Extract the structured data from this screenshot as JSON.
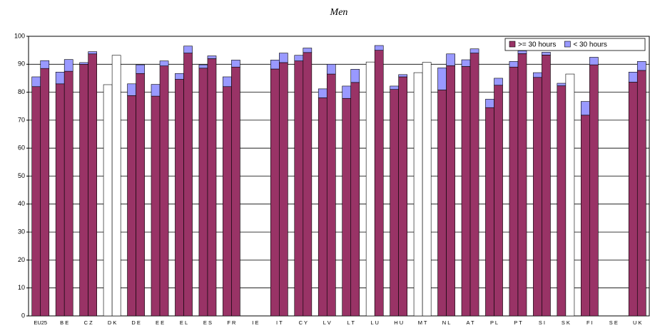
{
  "chart_data": {
    "type": "bar",
    "stacked": true,
    "title": "Men",
    "categories": [
      "EU25",
      "B E",
      "C Z",
      "D K",
      "D E",
      "E E",
      "E L",
      "E S",
      "F R",
      "I E",
      "I T",
      "C Y",
      "L V",
      "L T",
      "L U",
      "H U",
      "M T",
      "N L",
      "A T",
      "P L",
      "P T",
      "S I",
      "S K",
      "F I",
      "S E",
      "U K"
    ],
    "series": [
      {
        "name": ">= 30 hours",
        "color": "#993366",
        "values": [
          [
            82,
            88.5
          ],
          [
            83,
            87.5
          ],
          [
            90,
            93.7
          ],
          [
            null,
            null
          ],
          [
            78.8,
            86.7
          ],
          [
            78.6,
            89.4
          ],
          [
            84.6,
            94
          ],
          [
            88.6,
            92
          ],
          [
            82,
            89
          ],
          [
            null,
            null
          ],
          [
            88.3,
            90.6
          ],
          [
            91.2,
            94.2
          ],
          [
            78,
            86.5
          ],
          [
            77.8,
            83.5
          ],
          [
            null,
            95
          ],
          [
            81,
            85.5
          ],
          [
            null,
            null
          ],
          [
            80.8,
            89.5
          ],
          [
            89.2,
            94
          ],
          [
            74.5,
            82.5
          ],
          [
            89,
            93.8
          ],
          [
            85.3,
            93.3
          ],
          [
            82.3,
            null
          ],
          [
            71.8,
            89.8
          ],
          [
            null,
            null
          ],
          [
            83.6,
            87.8
          ]
        ]
      },
      {
        "name": "< 30 hours",
        "color": "#9999ff",
        "values": [
          [
            3.5,
            2.8
          ],
          [
            4.2,
            4.2
          ],
          [
            0.6,
            0.8
          ],
          [
            null,
            null
          ],
          [
            4.2,
            3.1
          ],
          [
            4.2,
            1.8
          ],
          [
            2.1,
            2.5
          ],
          [
            1.2,
            1
          ],
          [
            3.5,
            2.5
          ],
          [
            null,
            null
          ],
          [
            3.2,
            3.4
          ],
          [
            2,
            1.6
          ],
          [
            3.2,
            3.5
          ],
          [
            4.4,
            4.7
          ],
          [
            null,
            1.7
          ],
          [
            1.2,
            0.8
          ],
          [
            null,
            null
          ],
          [
            7.9,
            4.2
          ],
          [
            2.4,
            1.5
          ],
          [
            3,
            2.5
          ],
          [
            2,
            1
          ],
          [
            1.7,
            1
          ],
          [
            0.9,
            null
          ],
          [
            4.9,
            2.7
          ],
          [
            null,
            null
          ],
          [
            3.6,
            3.2
          ]
        ]
      },
      {
        "color": "#ffffff",
        "values": [
          [
            null,
            null
          ],
          [
            null,
            null
          ],
          [
            null,
            null
          ],
          [
            82.7,
            93.2
          ],
          [
            null,
            null
          ],
          [
            null,
            null
          ],
          [
            null,
            null
          ],
          [
            null,
            null
          ],
          [
            null,
            null
          ],
          [
            null,
            null
          ],
          [
            null,
            null
          ],
          [
            null,
            null
          ],
          [
            null,
            null
          ],
          [
            null,
            null
          ],
          [
            90.8,
            null
          ],
          [
            null,
            null
          ],
          [
            87,
            90.7
          ],
          [
            null,
            null
          ],
          [
            null,
            null
          ],
          [
            null,
            null
          ],
          [
            null,
            null
          ],
          [
            null,
            null
          ],
          [
            null,
            86.5
          ],
          [
            null,
            null
          ],
          [
            null,
            null
          ],
          [
            null,
            null
          ]
        ]
      }
    ],
    "ylim": [
      0,
      100
    ],
    "yticks": [
      0,
      10,
      20,
      30,
      40,
      50,
      60,
      70,
      80,
      90,
      100
    ],
    "grid": true,
    "legend": "top-right"
  }
}
